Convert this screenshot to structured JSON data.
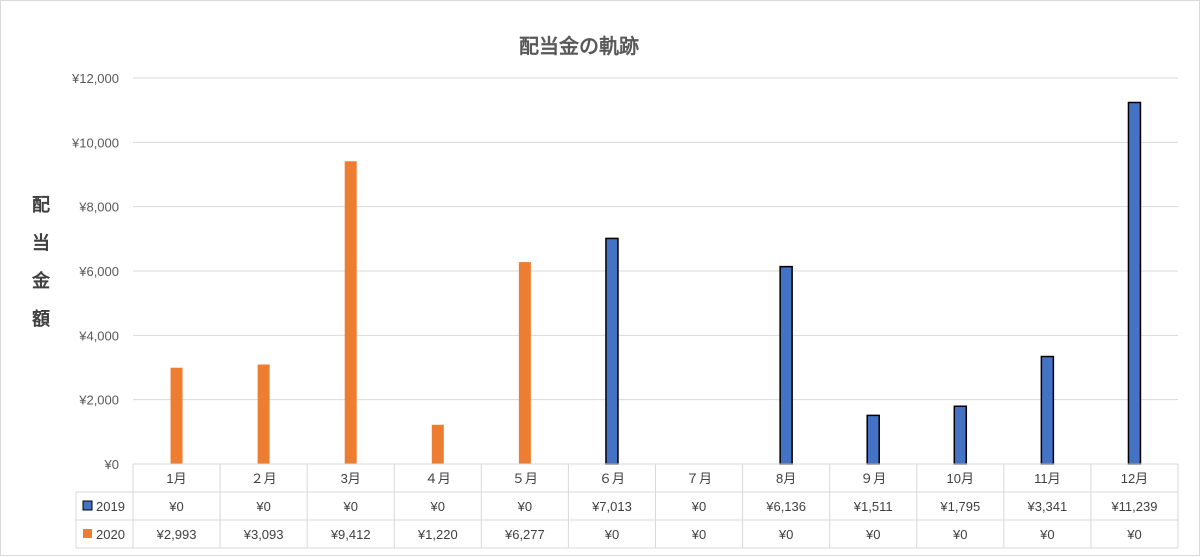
{
  "chart_data": {
    "type": "bar",
    "title": "配当金の軌跡",
    "ylabel": "配当金額",
    "ylim": [
      0,
      12000
    ],
    "yticks": [
      "¥0",
      "¥2,000",
      "¥4,000",
      "¥6,000",
      "¥8,000",
      "¥10,000",
      "¥12,000"
    ],
    "ytick_values": [
      0,
      2000,
      4000,
      6000,
      8000,
      10000,
      12000
    ],
    "grid": true,
    "legend": "data-table",
    "categories": [
      "1月",
      "２月",
      "3月",
      "４月",
      "５月",
      "６月",
      "７月",
      "8月",
      "９月",
      "10月",
      "11月",
      "12月"
    ],
    "series": [
      {
        "name": "2019",
        "color": "#4472c4",
        "values": [
          0,
          0,
          0,
          0,
          0,
          7013,
          0,
          6136,
          1511,
          1795,
          3341,
          11239
        ],
        "labels": [
          "¥0",
          "¥0",
          "¥0",
          "¥0",
          "¥0",
          "¥7,013",
          "¥0",
          "¥6,136",
          "¥1,511",
          "¥1,795",
          "¥3,341",
          "¥11,239"
        ]
      },
      {
        "name": "2020",
        "color": "#ed7d31",
        "values": [
          2993,
          3093,
          9412,
          1220,
          6277,
          0,
          0,
          0,
          0,
          0,
          0,
          0
        ],
        "labels": [
          "¥2,993",
          "¥3,093",
          "¥9,412",
          "¥1,220",
          "¥6,277",
          "¥0",
          "¥0",
          "¥0",
          "¥0",
          "¥0",
          "¥0",
          "¥0"
        ]
      }
    ]
  }
}
